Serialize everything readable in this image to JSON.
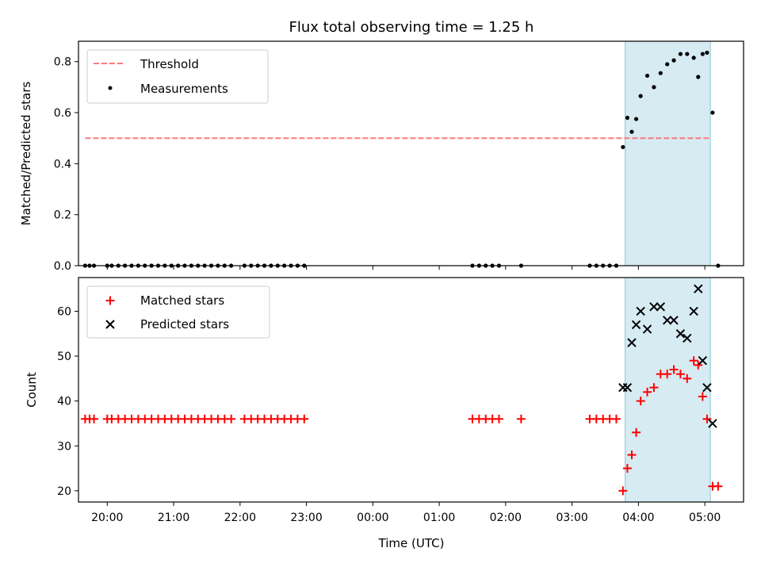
{
  "title": "Flux total observing time = 1.25 h",
  "colors": {
    "threshold": "#ff7a7a",
    "measurement": "#000000",
    "matched": "#ff0000",
    "predicted": "#000000",
    "shade": "#add8e6"
  },
  "chart_data": [
    {
      "type": "scatter",
      "ylabel": "Matched/Predicted stars",
      "ylim": [
        0,
        0.88
      ],
      "yticks": [
        0.0,
        0.2,
        0.4,
        0.6,
        0.8
      ],
      "ytick_labels": [
        "0.0",
        "0.2",
        "0.4",
        "0.6",
        "0.8"
      ],
      "xlim": [
        "19:34",
        "05:35"
      ],
      "shaded_span": [
        "03:48",
        "05:05"
      ],
      "legend": {
        "position": "upper left",
        "entries": [
          "Threshold",
          "Measurements"
        ]
      },
      "series": [
        {
          "name": "Threshold",
          "kind": "dashed-line",
          "x": [
            "19:40",
            "05:05"
          ],
          "y": [
            0.5,
            0.5
          ]
        },
        {
          "name": "Measurements",
          "kind": "dot",
          "x": [
            "19:40",
            "19:44",
            "19:48",
            "20:00",
            "20:04",
            "20:10",
            "20:16",
            "20:22",
            "20:28",
            "20:34",
            "20:40",
            "20:46",
            "20:52",
            "20:58",
            "21:04",
            "21:10",
            "21:16",
            "21:22",
            "21:28",
            "21:34",
            "21:40",
            "21:46",
            "21:52",
            "22:04",
            "22:10",
            "22:16",
            "22:22",
            "22:28",
            "22:34",
            "22:40",
            "22:46",
            "22:52",
            "22:58",
            "01:30",
            "01:36",
            "01:42",
            "01:48",
            "01:54",
            "02:14",
            "03:16",
            "03:22",
            "03:28",
            "03:34",
            "03:40",
            "03:46",
            "03:50",
            "03:54",
            "03:58",
            "04:02",
            "04:08",
            "04:14",
            "04:20",
            "04:26",
            "04:32",
            "04:38",
            "04:44",
            "04:50",
            "04:54",
            "04:58",
            "05:02",
            "05:07",
            "05:12"
          ],
          "y": [
            0,
            0,
            0,
            0,
            0,
            0,
            0,
            0,
            0,
            0,
            0,
            0,
            0,
            0,
            0,
            0,
            0,
            0,
            0,
            0,
            0,
            0,
            0,
            0,
            0,
            0,
            0,
            0,
            0,
            0,
            0,
            0,
            0,
            0,
            0,
            0,
            0,
            0,
            0,
            0,
            0,
            0,
            0,
            0,
            0.465,
            0.58,
            0.525,
            0.575,
            0.665,
            0.745,
            0.7,
            0.755,
            0.79,
            0.805,
            0.83,
            0.83,
            0.815,
            0.74,
            0.83,
            0.835,
            0.6,
            0
          ]
        }
      ]
    },
    {
      "type": "scatter",
      "ylabel": "Count",
      "xlabel": "Time (UTC)",
      "ylim": [
        17.5,
        67.5
      ],
      "yticks": [
        20,
        30,
        40,
        50,
        60
      ],
      "ytick_labels": [
        "20",
        "30",
        "40",
        "50",
        "60"
      ],
      "xlim": [
        "19:34",
        "05:35"
      ],
      "xticks": [
        "20:00",
        "21:00",
        "22:00",
        "23:00",
        "00:00",
        "01:00",
        "02:00",
        "03:00",
        "04:00",
        "05:00"
      ],
      "shaded_span": [
        "03:48",
        "05:05"
      ],
      "legend": {
        "position": "upper left",
        "entries": [
          "Matched stars",
          "Predicted stars"
        ]
      },
      "series": [
        {
          "name": "Matched stars",
          "kind": "plus",
          "x": [
            "19:40",
            "19:44",
            "19:48",
            "20:00",
            "20:04",
            "20:10",
            "20:16",
            "20:22",
            "20:28",
            "20:34",
            "20:40",
            "20:46",
            "20:52",
            "20:58",
            "21:04",
            "21:10",
            "21:16",
            "21:22",
            "21:28",
            "21:34",
            "21:40",
            "21:46",
            "21:52",
            "22:04",
            "22:10",
            "22:16",
            "22:22",
            "22:28",
            "22:34",
            "22:40",
            "22:46",
            "22:52",
            "22:58",
            "01:30",
            "01:36",
            "01:42",
            "01:48",
            "01:54",
            "02:14",
            "03:16",
            "03:22",
            "03:28",
            "03:34",
            "03:40",
            "03:46",
            "03:50",
            "03:54",
            "03:58",
            "04:02",
            "04:08",
            "04:14",
            "04:20",
            "04:26",
            "04:32",
            "04:38",
            "04:44",
            "04:50",
            "04:54",
            "04:58",
            "05:02",
            "05:07",
            "05:12"
          ],
          "y": [
            36,
            36,
            36,
            36,
            36,
            36,
            36,
            36,
            36,
            36,
            36,
            36,
            36,
            36,
            36,
            36,
            36,
            36,
            36,
            36,
            36,
            36,
            36,
            36,
            36,
            36,
            36,
            36,
            36,
            36,
            36,
            36,
            36,
            36,
            36,
            36,
            36,
            36,
            36,
            36,
            36,
            36,
            36,
            36,
            20,
            25,
            28,
            33,
            40,
            42,
            43,
            46,
            46,
            47,
            46,
            45,
            49,
            48,
            41,
            36,
            21,
            21
          ]
        },
        {
          "name": "Predicted stars",
          "kind": "x",
          "x": [
            "03:46",
            "03:50",
            "03:54",
            "03:58",
            "04:02",
            "04:08",
            "04:14",
            "04:20",
            "04:26",
            "04:32",
            "04:38",
            "04:44",
            "04:50",
            "04:54",
            "04:58",
            "05:02",
            "05:07"
          ],
          "y": [
            43,
            43,
            53,
            57,
            60,
            56,
            61,
            61,
            58,
            58,
            55,
            54,
            60,
            65,
            49,
            43,
            35
          ]
        }
      ]
    }
  ]
}
